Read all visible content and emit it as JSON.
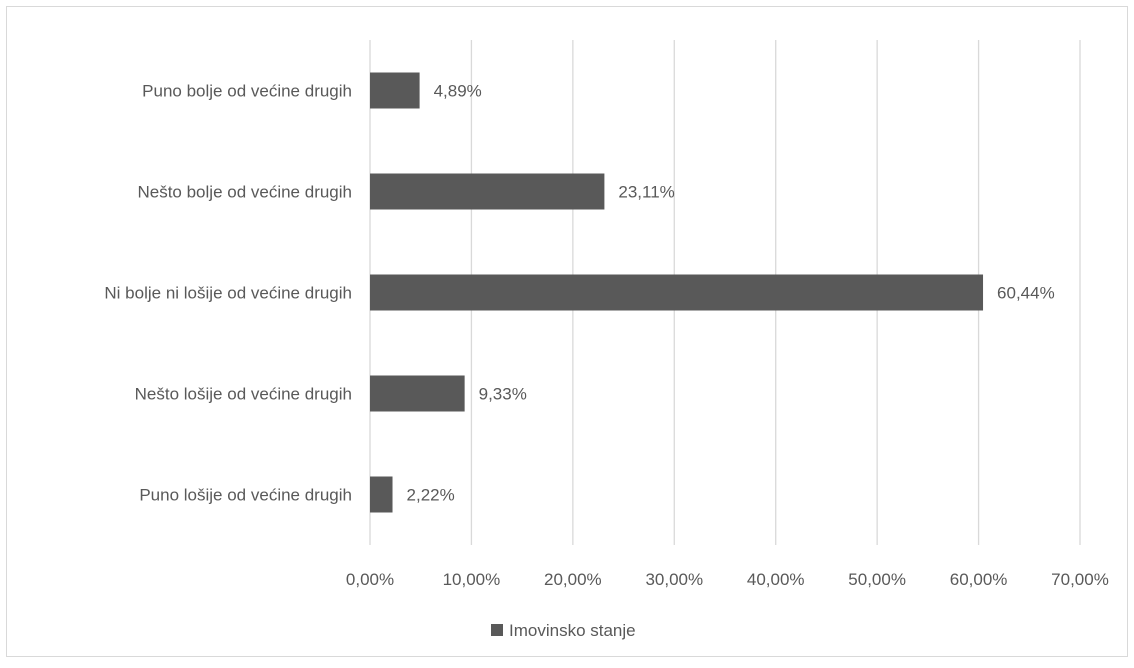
{
  "chart_data": {
    "type": "bar",
    "orientation": "horizontal",
    "categories": [
      "Puno bolje od većine drugih",
      "Nešto bolje od većine drugih",
      "Ni bolje ni lošije od većine drugih",
      "Nešto lošije od većine drugih",
      "Puno lošije od većine drugih"
    ],
    "series": [
      {
        "name": "Imovinsko stanje",
        "values": [
          4.89,
          23.11,
          60.44,
          9.33,
          2.22
        ],
        "labels": [
          "4,89%",
          "23,11%",
          "60,44%",
          "9,33%",
          "2,22%"
        ],
        "color": "#595959"
      }
    ],
    "xlim": [
      0,
      70
    ],
    "x_ticks": [
      0,
      10,
      20,
      30,
      40,
      50,
      60,
      70
    ],
    "x_tick_labels": [
      "0,00%",
      "10,00%",
      "20,00%",
      "30,00%",
      "40,00%",
      "50,00%",
      "60,00%",
      "70,00%"
    ],
    "grid": true,
    "legend": "bottom",
    "title": "",
    "xlabel": "",
    "ylabel": ""
  },
  "colors": {
    "bar": "#595959",
    "grid": "#d9d9d9",
    "frame": "#d9d9d9",
    "text": "#595959"
  }
}
